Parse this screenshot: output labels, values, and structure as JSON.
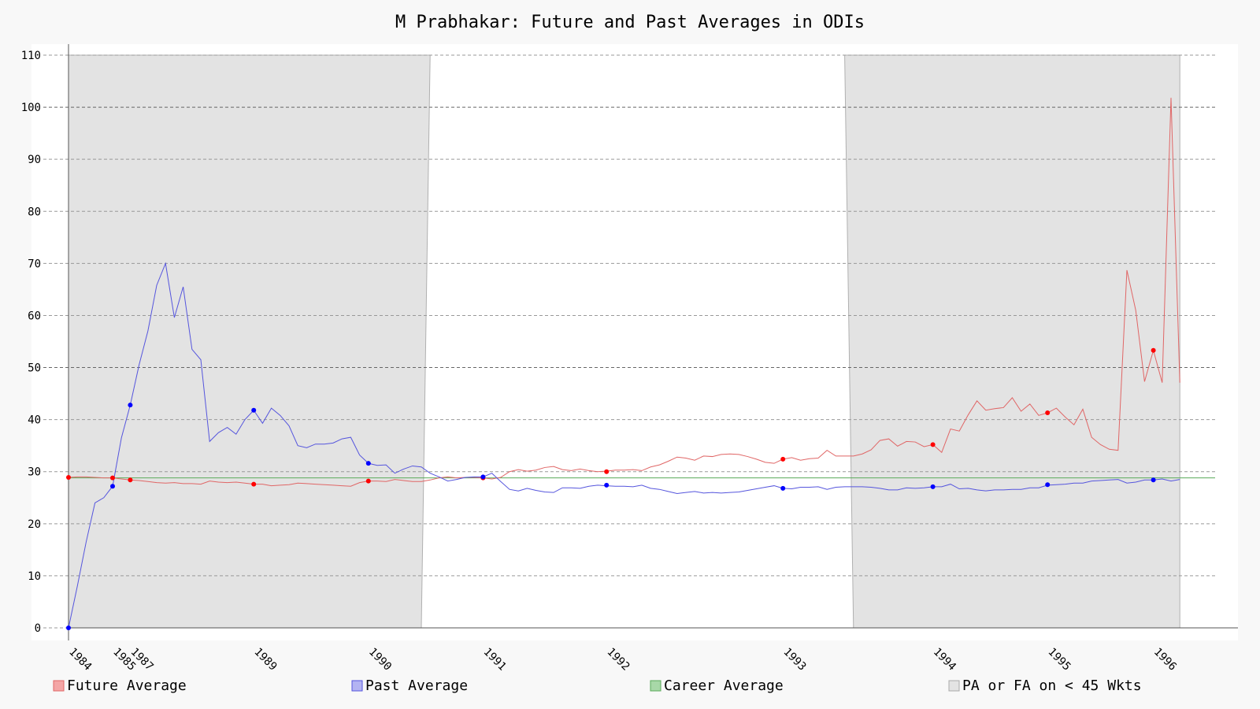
{
  "chart_data": {
    "type": "line",
    "title": "M Prabhakar: Future and Past Averages in ODIs",
    "xlabel": "",
    "ylabel": "",
    "ylim": [
      0,
      110
    ],
    "xlim": [
      0,
      130
    ],
    "y_ticks": [
      0,
      10,
      20,
      30,
      40,
      50,
      60,
      70,
      80,
      90,
      100,
      110
    ],
    "x_ticks": [
      {
        "label": "1984",
        "x": 0
      },
      {
        "label": "1985",
        "x": 5
      },
      {
        "label": "1987",
        "x": 7
      },
      {
        "label": "1989",
        "x": 21
      },
      {
        "label": "1990",
        "x": 34
      },
      {
        "label": "1991",
        "x": 47
      },
      {
        "label": "1992",
        "x": 61
      },
      {
        "label": "1993",
        "x": 81
      },
      {
        "label": "1994",
        "x": 98
      },
      {
        "label": "1995",
        "x": 111
      },
      {
        "label": "1996",
        "x": 123
      }
    ],
    "grid": true,
    "legend_position": "bottom",
    "career_average": 28.8,
    "shaded_regions": [
      {
        "x_top": [
          0,
          41
        ],
        "x_bottom": [
          0,
          40
        ]
      },
      {
        "x_top": [
          88,
          126
        ],
        "x_bottom": [
          89,
          126
        ]
      }
    ],
    "series": [
      {
        "name": "Future Average",
        "color": "#e06666",
        "marker_color": "#ff0000",
        "values": [
          28.9,
          29.0,
          29.0,
          28.9,
          28.8,
          28.8,
          28.6,
          28.4,
          28.3,
          28.1,
          27.9,
          27.8,
          27.9,
          27.7,
          27.7,
          27.6,
          28.2,
          28.0,
          27.9,
          28.0,
          27.8,
          27.6,
          27.6,
          27.3,
          27.4,
          27.5,
          27.8,
          27.7,
          27.6,
          27.5,
          27.4,
          27.3,
          27.2,
          27.9,
          28.2,
          28.2,
          28.1,
          28.5,
          28.3,
          28.1,
          28.1,
          28.4,
          28.8,
          29.0,
          28.8,
          28.9,
          28.9,
          28.8,
          28.6,
          28.9,
          30.0,
          30.4,
          30.1,
          30.3,
          30.8,
          31.0,
          30.4,
          30.2,
          30.5,
          30.2,
          30.0,
          30.1,
          30.3,
          30.3,
          30.4,
          30.2,
          30.9,
          31.3,
          32.0,
          32.8,
          32.6,
          32.2,
          33.0,
          32.9,
          33.3,
          33.4,
          33.3,
          32.9,
          32.4,
          31.8,
          31.6,
          32.4,
          32.7,
          32.2,
          32.5,
          32.6,
          34.1,
          33.0,
          33.0,
          33.0,
          33.4,
          34.2,
          36.0,
          36.3,
          34.9,
          35.8,
          35.7,
          34.8,
          35.2,
          33.7,
          38.2,
          37.8,
          40.9,
          43.6,
          41.8,
          42.1,
          42.3,
          44.2,
          41.6,
          43.0,
          40.8,
          41.3,
          42.2,
          40.5,
          39.0,
          42.0,
          36.6,
          35.2,
          34.3,
          34.1,
          68.7,
          61.0,
          47.3,
          53.3,
          47.1,
          101.8,
          47.1
        ],
        "markers": [
          {
            "x": 0,
            "y": 28.9
          },
          {
            "x": 5,
            "y": 28.8
          },
          {
            "x": 7,
            "y": 28.4
          },
          {
            "x": 21,
            "y": 27.6
          },
          {
            "x": 34,
            "y": 28.2
          },
          {
            "x": 47,
            "y": 28.8
          },
          {
            "x": 61,
            "y": 30.0
          },
          {
            "x": 81,
            "y": 32.4
          },
          {
            "x": 98,
            "y": 35.2
          },
          {
            "x": 111,
            "y": 41.3
          },
          {
            "x": 123,
            "y": 53.3
          }
        ]
      },
      {
        "name": "Past Average",
        "color": "#5555dd",
        "marker_color": "#0000ff",
        "values": [
          0.0,
          8.0,
          16.5,
          24.0,
          25.0,
          27.2,
          36.5,
          42.8,
          50.5,
          57.0,
          65.8,
          70.0,
          59.6,
          65.5,
          53.5,
          51.5,
          35.8,
          37.5,
          38.5,
          37.2,
          40.0,
          41.8,
          39.3,
          42.2,
          40.8,
          38.8,
          35.0,
          34.6,
          35.3,
          35.3,
          35.5,
          36.3,
          36.6,
          33.2,
          31.6,
          31.2,
          31.3,
          29.7,
          30.5,
          31.1,
          30.9,
          29.7,
          29.0,
          28.2,
          28.5,
          28.9,
          29.0,
          29.0,
          29.7,
          28.1,
          26.6,
          26.3,
          26.8,
          26.4,
          26.1,
          26.0,
          26.9,
          26.9,
          26.8,
          27.2,
          27.4,
          27.3,
          27.2,
          27.2,
          27.1,
          27.4,
          26.8,
          26.6,
          26.2,
          25.8,
          26.0,
          26.2,
          25.9,
          26.0,
          25.9,
          26.0,
          26.1,
          26.4,
          26.7,
          27.0,
          27.3,
          26.8,
          26.7,
          27.0,
          27.0,
          27.1,
          26.6,
          27.0,
          27.1,
          27.1,
          27.1,
          27.0,
          26.8,
          26.5,
          26.5,
          26.9,
          26.8,
          26.9,
          27.1,
          27.1,
          27.6,
          26.7,
          26.8,
          26.5,
          26.3,
          26.5,
          26.5,
          26.6,
          26.6,
          26.9,
          26.9,
          27.4,
          27.5,
          27.6,
          27.8,
          27.8,
          28.2,
          28.3,
          28.4,
          28.5,
          27.8,
          28.0,
          28.4,
          28.4,
          28.6,
          28.2,
          28.5
        ],
        "markers": [
          {
            "x": 0,
            "y": 0.0
          },
          {
            "x": 5,
            "y": 27.2
          },
          {
            "x": 7,
            "y": 42.8
          },
          {
            "x": 21,
            "y": 41.8
          },
          {
            "x": 34,
            "y": 31.6
          },
          {
            "x": 47,
            "y": 29.0
          },
          {
            "x": 61,
            "y": 27.4
          },
          {
            "x": 81,
            "y": 26.8
          },
          {
            "x": 98,
            "y": 27.1
          },
          {
            "x": 111,
            "y": 27.5
          },
          {
            "x": 123,
            "y": 28.4
          }
        ]
      }
    ],
    "legend": [
      {
        "label": "Future Average",
        "swatch": "#f4a6a6",
        "border": "#e06666"
      },
      {
        "label": "Past Average",
        "swatch": "#b3b3f2",
        "border": "#5555dd"
      },
      {
        "label": "Career Average",
        "swatch": "#a8d8a8",
        "border": "#5aaa5a"
      },
      {
        "label": "PA or FA on < 45 Wkts",
        "swatch": "#e3e3e3",
        "border": "#aaaaaa"
      }
    ]
  }
}
